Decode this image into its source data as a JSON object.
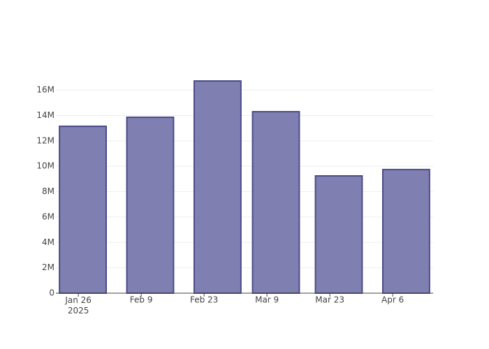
{
  "chart_data": {
    "type": "bar",
    "x": [
      "2025-01-27",
      "2025-02-11",
      "2025-02-26",
      "2025-03-11",
      "2025-03-25",
      "2025-04-09"
    ],
    "values": [
      13150000,
      13860000,
      16720000,
      14300000,
      9240000,
      9740000
    ],
    "color": "#7f7fb2",
    "edge_color": "#4b4b88",
    "xlim": [
      "2025-01-21",
      "2025-04-15"
    ],
    "xticks": [
      {
        "value": "2025-01-26",
        "label": "Jan 26\n2025"
      },
      {
        "value": "2025-02-09",
        "label": "Feb 9"
      },
      {
        "value": "2025-02-23",
        "label": "Feb 23"
      },
      {
        "value": "2025-03-09",
        "label": "Mar 9"
      },
      {
        "value": "2025-03-23",
        "label": "Mar 23"
      },
      {
        "value": "2025-04-06",
        "label": "Apr 6"
      }
    ],
    "ylim": [
      0,
      17600000
    ],
    "yticks": [
      0,
      {
        "value": 2000000,
        "label": "2M"
      },
      {
        "value": 4000000,
        "label": "4M"
      },
      {
        "value": 6000000,
        "label": "6M"
      },
      {
        "value": 8000000,
        "label": "8M"
      },
      {
        "value": 10000000,
        "label": "10M"
      },
      {
        "value": 12000000,
        "label": "12M"
      },
      {
        "value": 14000000,
        "label": "14M"
      },
      {
        "value": 16000000,
        "label": "16M"
      }
    ],
    "grid": true
  }
}
